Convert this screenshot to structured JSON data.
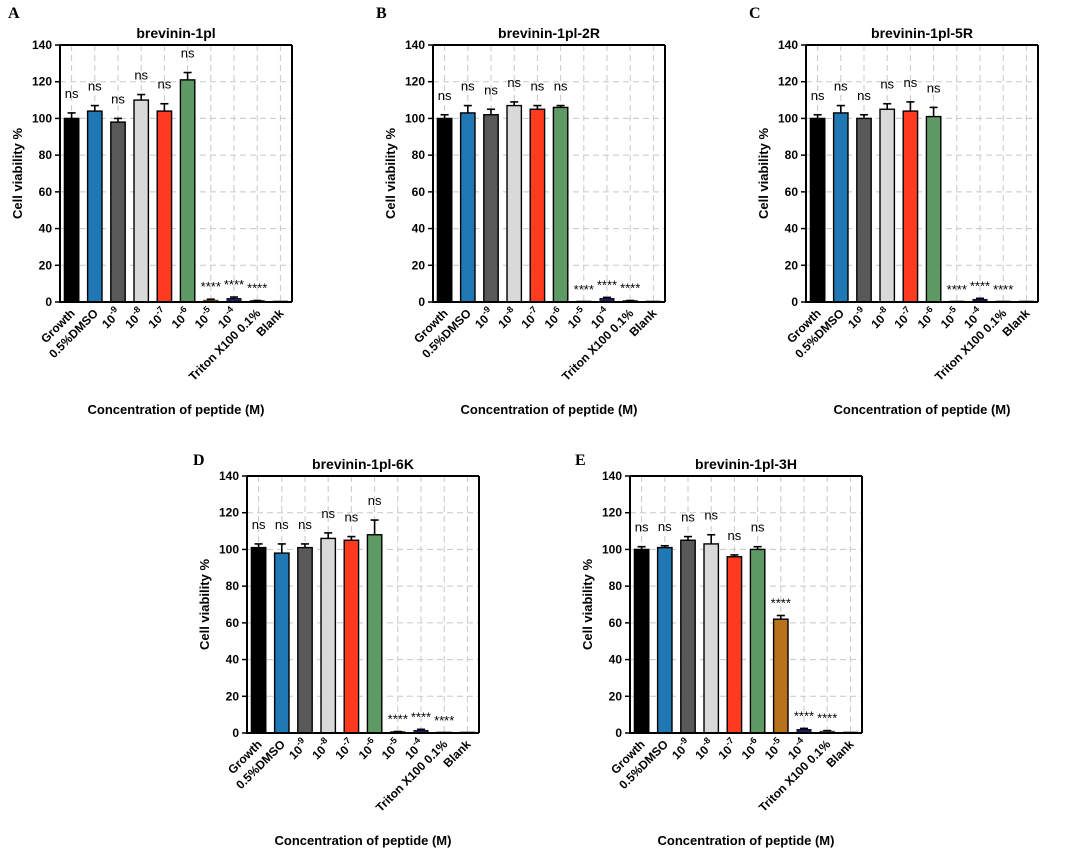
{
  "figure": {
    "axis_common": {
      "xlabel": "Concentration of peptide (M)",
      "ylabel": "Cell viability %",
      "ylim": [
        0,
        140
      ],
      "yticks": [
        0,
        20,
        40,
        60,
        80,
        100,
        120,
        140
      ],
      "grid": true
    },
    "colors": {
      "Growth": "#000000",
      "0.5%DMSO": "#1f77b4",
      "10-9": "#595959",
      "10-8": "#d9d9d9",
      "10-7": "#ff3b1f",
      "10-6": "#5e9a63",
      "10-5": "#b8721a",
      "10-4": "#1a1f5c",
      "Triton X100 0.1%": "#6b6b6b",
      "Blank": "#ff3b1f"
    }
  },
  "chart_data": [
    {
      "panel": "A",
      "type": "bar",
      "title": "brevinin-1pl",
      "categories": [
        "Growth",
        "0.5%DMSO",
        "10-9",
        "10-8",
        "10-7",
        "10-6",
        "10-5",
        "10-4",
        "Triton X100 0.1%",
        "Blank"
      ],
      "values": [
        100,
        104,
        98,
        110,
        104,
        121,
        1,
        2,
        0.5,
        0
      ],
      "errors": [
        3,
        3,
        2,
        3,
        4,
        4,
        0.5,
        0.7,
        0.3,
        0
      ],
      "annotations": [
        "ns",
        "ns",
        "ns",
        "ns",
        "ns",
        "ns",
        "****",
        "****",
        "****",
        ""
      ],
      "xlabel": "Concentration of peptide (M)",
      "ylabel": "Cell viability %",
      "ylim": [
        0,
        140
      ]
    },
    {
      "panel": "B",
      "type": "bar",
      "title": "brevinin-1pl-2R",
      "categories": [
        "Growth",
        "0.5%DMSO",
        "10-9",
        "10-8",
        "10-7",
        "10-6",
        "10-5",
        "10-4",
        "Triton X100 0.1%",
        "Blank"
      ],
      "values": [
        100,
        103,
        102,
        107,
        105,
        106,
        0,
        2,
        0.5,
        0
      ],
      "errors": [
        2,
        4,
        3,
        2,
        2,
        1,
        0,
        0.5,
        0.3,
        0
      ],
      "annotations": [
        "ns",
        "ns",
        "ns",
        "ns",
        "ns",
        "ns",
        "****",
        "****",
        "****",
        ""
      ],
      "xlabel": "Concentration of peptide (M)",
      "ylabel": "Cell viability %",
      "ylim": [
        0,
        140
      ]
    },
    {
      "panel": "C",
      "type": "bar",
      "title": "brevinin-1pl-5R",
      "categories": [
        "Growth",
        "0.5%DMSO",
        "10-9",
        "10-8",
        "10-7",
        "10-6",
        "10-5",
        "10-4",
        "Triton X100 0.1%",
        "Blank"
      ],
      "values": [
        100,
        103,
        100,
        105,
        104,
        101,
        0,
        1.5,
        0,
        0
      ],
      "errors": [
        2,
        4,
        2,
        3,
        5,
        5,
        0,
        0.5,
        0,
        0
      ],
      "annotations": [
        "ns",
        "ns",
        "ns",
        "ns",
        "ns",
        "ns",
        "****",
        "****",
        "****",
        ""
      ],
      "xlabel": "Concentration of peptide (M)",
      "ylabel": "Cell viability %",
      "ylim": [
        0,
        140
      ]
    },
    {
      "panel": "D",
      "type": "bar",
      "title": "brevinin-1pl-6K",
      "categories": [
        "Growth",
        "0.5%DMSO",
        "10-9",
        "10-8",
        "10-7",
        "10-6",
        "10-5",
        "10-4",
        "Triton X100 0.1%",
        "Blank"
      ],
      "values": [
        101,
        98,
        101,
        106,
        105,
        108,
        0.5,
        1.5,
        0,
        0
      ],
      "errors": [
        2,
        5,
        2,
        3,
        2,
        8,
        0.3,
        0.5,
        0,
        0
      ],
      "annotations": [
        "ns",
        "ns",
        "ns",
        "ns",
        "ns",
        "ns",
        "****",
        "****",
        "****",
        ""
      ],
      "xlabel": "Concentration of peptide (M)",
      "ylabel": "Cell viability %",
      "ylim": [
        0,
        140
      ]
    },
    {
      "panel": "E",
      "type": "bar",
      "title": "brevinin-1pl-3H",
      "categories": [
        "Growth",
        "0.5%DMSO",
        "10-9",
        "10-8",
        "10-7",
        "10-6",
        "10-5",
        "10-4",
        "Triton X100 0.1%",
        "Blank"
      ],
      "values": [
        100,
        101,
        105,
        103,
        96,
        100,
        62,
        2,
        1,
        0
      ],
      "errors": [
        1.5,
        1,
        2,
        5,
        1,
        1.5,
        2,
        0.5,
        0.3,
        0
      ],
      "annotations": [
        "ns",
        "ns",
        "ns",
        "ns",
        "ns",
        "ns",
        "****",
        "****",
        "****",
        ""
      ],
      "xlabel": "Concentration of peptide (M)",
      "ylabel": "Cell viability %",
      "ylim": [
        0,
        140
      ]
    }
  ]
}
